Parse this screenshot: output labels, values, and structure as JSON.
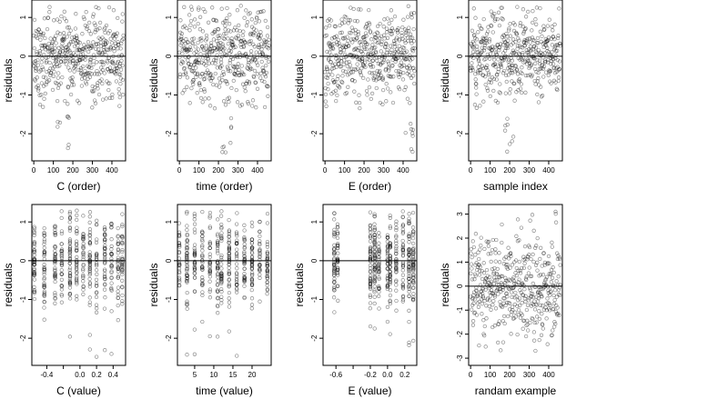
{
  "chart_data": [
    {
      "type": "scatter",
      "xlabel": "C (order)",
      "ylabel": "residuals",
      "xlim": [
        -10,
        470
      ],
      "ylim": [
        -2.7,
        1.45
      ],
      "xticks": [
        0,
        100,
        200,
        300,
        400
      ],
      "yticks": [
        -2,
        -1,
        0,
        1
      ],
      "hline": 0,
      "series": [
        {
          "n": 460,
          "x": "index 1..460",
          "distribution": "sample order, residual noise, mostly within -1.3..1.3 with a few outliers to -2.5"
        }
      ]
    },
    {
      "type": "scatter",
      "xlabel": "time (order)",
      "ylabel": "residuals",
      "xlim": [
        -10,
        470
      ],
      "ylim": [
        -2.7,
        1.45
      ],
      "xticks": [
        0,
        100,
        200,
        300,
        400
      ],
      "yticks": [
        -2,
        -1,
        0,
        1
      ],
      "hline": 0,
      "series": [
        {
          "n": 460,
          "x": "index 1..460",
          "distribution": "residual noise within -1.3..1.3 with a few outliers to -2.4"
        }
      ]
    },
    {
      "type": "scatter",
      "xlabel": "E (order)",
      "ylabel": "residuals",
      "xlim": [
        -10,
        470
      ],
      "ylim": [
        -2.7,
        1.45
      ],
      "xticks": [
        0,
        100,
        200,
        300,
        400
      ],
      "yticks": [
        -2,
        -1,
        0,
        1
      ],
      "hline": 0,
      "series": [
        {
          "n": 460,
          "x": "index 1..460",
          "distribution": "residual noise; large negative residuals (to -2.5) near index 400-450"
        }
      ]
    },
    {
      "type": "scatter",
      "xlabel": "sample index",
      "ylabel": "residuals",
      "xlim": [
        -10,
        470
      ],
      "ylim": [
        -2.7,
        1.45
      ],
      "xticks": [
        0,
        100,
        200,
        300,
        400
      ],
      "yticks": [
        -2,
        -1,
        0,
        1
      ],
      "hline": 0,
      "series": [
        {
          "n": 460,
          "x": "index 1..460",
          "distribution": "residual noise; low outliers (to -2.5) near index 200"
        }
      ]
    },
    {
      "type": "scatter",
      "xlabel": "C (value)",
      "ylabel": "residuals",
      "xlim": [
        -0.58,
        0.55
      ],
      "ylim": [
        -2.7,
        1.45
      ],
      "xticks": [
        -0.4,
        -0.2,
        0.0,
        0.2,
        0.4
      ],
      "xticklabels": [
        "-0.4",
        "0.0",
        "0.2",
        "0.4"
      ],
      "xtickshown": [
        -0.4,
        0.0,
        0.2,
        0.4
      ],
      "yticks": [
        -2,
        -1,
        0,
        1
      ],
      "hline": 0,
      "series": [
        {
          "n": 460,
          "x_levels": [
            -0.55,
            -0.43,
            -0.3,
            -0.22,
            -0.12,
            -0.04,
            0.04,
            0.12,
            0.2,
            0.3,
            0.38,
            0.46,
            0.51
          ],
          "distribution": "points stacked in vertical columns at discrete C levels"
        }
      ]
    },
    {
      "type": "scatter",
      "xlabel": "time (value)",
      "ylabel": "residuals",
      "xlim": [
        0.5,
        25
      ],
      "ylim": [
        -2.7,
        1.45
      ],
      "xticks": [
        5,
        10,
        15,
        20
      ],
      "yticks": [
        -2,
        -1,
        0,
        1
      ],
      "hline": 0,
      "series": [
        {
          "n": 460,
          "x_levels": [
            1,
            3,
            5,
            7,
            9,
            11,
            12,
            14,
            16,
            18,
            20,
            22,
            24
          ],
          "distribution": "points stacked in columns at discrete time values"
        }
      ]
    },
    {
      "type": "scatter",
      "xlabel": "E (value)",
      "ylabel": "residuals",
      "xlim": [
        -0.75,
        0.34
      ],
      "ylim": [
        -2.7,
        1.45
      ],
      "xticks": [
        -0.6,
        -0.4,
        -0.2,
        0.0,
        0.2
      ],
      "xticklabels": [
        "-0.6",
        "-0.2",
        "0.0",
        "0.2"
      ],
      "xtickshown": [
        -0.6,
        -0.2,
        0.0,
        0.2
      ],
      "yticks": [
        -2,
        -1,
        0,
        1
      ],
      "hline": 0,
      "series": [
        {
          "n": 460,
          "x_levels": [
            -0.62,
            -0.58,
            -0.2,
            -0.15,
            -0.1,
            0.0,
            0.03,
            0.1,
            0.18,
            0.25,
            0.3
          ],
          "distribution": "columns at discrete E values; densest columns near -0.6 and 0.3"
        }
      ]
    },
    {
      "type": "scatter",
      "xlabel": "randam example",
      "ylabel": "residuals",
      "xlim": [
        -10,
        470
      ],
      "ylim": [
        -3.3,
        3.4
      ],
      "xticks": [
        0,
        100,
        200,
        300,
        400
      ],
      "yticks": [
        -3,
        -2,
        -1,
        0,
        1,
        2,
        3
      ],
      "hline": 0,
      "series": [
        {
          "n": 460,
          "x": "index 1..460",
          "distribution": "normally distributed random noise, sd about 1"
        }
      ]
    }
  ]
}
